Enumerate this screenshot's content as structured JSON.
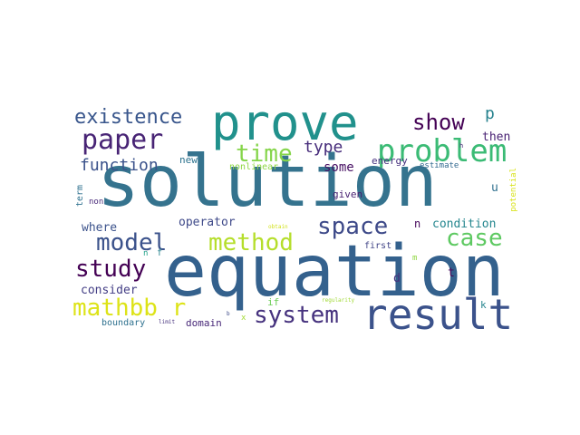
{
  "word_cloud": {
    "background": "#ffffff",
    "words": [
      {
        "text": "solution",
        "color": "#35738e"
      },
      {
        "text": "equation",
        "color": "#34618d"
      },
      {
        "text": "prove",
        "color": "#21918c"
      },
      {
        "text": "result",
        "color": "#3b528b"
      },
      {
        "text": "problem",
        "color": "#3bbb75"
      },
      {
        "text": "paper",
        "color": "#482475"
      },
      {
        "text": "existence",
        "color": "#39568c"
      },
      {
        "text": "show",
        "color": "#440154"
      },
      {
        "text": "p",
        "color": "#26828e"
      },
      {
        "text": "time",
        "color": "#85d54a"
      },
      {
        "text": "method",
        "color": "#b5de2b"
      },
      {
        "text": "model",
        "color": "#3b528b"
      },
      {
        "text": "space",
        "color": "#3e4a89"
      },
      {
        "text": "case",
        "color": "#5ec962"
      },
      {
        "text": "study",
        "color": "#440154"
      },
      {
        "text": "system",
        "color": "#46327e"
      },
      {
        "text": "mathbb r",
        "color": "#dde318"
      },
      {
        "text": "function",
        "color": "#3b528b"
      },
      {
        "text": "type",
        "color": "#472d7b"
      },
      {
        "text": "some",
        "color": "#471063"
      },
      {
        "text": "new",
        "color": "#2c728e"
      },
      {
        "text": "nonlinear",
        "color": "#8fd744"
      },
      {
        "text": "energy",
        "color": "#46307e"
      },
      {
        "text": "then",
        "color": "#482173"
      },
      {
        "text": "estimate",
        "color": "#31688e"
      },
      {
        "text": "potential",
        "color": "#d8e219"
      },
      {
        "text": "u",
        "color": "#2e6f8e"
      },
      {
        "text": "given",
        "color": "#482071"
      },
      {
        "text": "operator",
        "color": "#3e4989"
      },
      {
        "text": "condition",
        "color": "#24868e"
      },
      {
        "text": "where",
        "color": "#3b528b"
      },
      {
        "text": "non",
        "color": "#482979"
      },
      {
        "text": "term",
        "color": "#2d708e"
      },
      {
        "text": "n",
        "color": "#46085c"
      },
      {
        "text": "first",
        "color": "#414487"
      },
      {
        "text": "consider",
        "color": "#433e85"
      },
      {
        "text": "d",
        "color": "#46327e"
      },
      {
        "text": "t",
        "color": "#440154"
      },
      {
        "text": "k",
        "color": "#25858e"
      },
      {
        "text": "if",
        "color": "#6ece58"
      },
      {
        "text": "x",
        "color": "#a5db36"
      },
      {
        "text": "m",
        "color": "#90d743"
      },
      {
        "text": "h",
        "color": "#482878"
      },
      {
        "text": "regularity",
        "color": "#a2da37"
      },
      {
        "text": "obtain",
        "color": "#d2e21b"
      },
      {
        "text": "domain",
        "color": "#482878"
      },
      {
        "text": "boundary",
        "color": "#2d708e"
      },
      {
        "text": "limit",
        "color": "#46327e"
      },
      {
        "text": "b",
        "color": "#3e4a89"
      },
      {
        "text": "f",
        "color": "#26828e"
      },
      {
        "text": "n",
        "color": "#1fa187"
      }
    ]
  }
}
